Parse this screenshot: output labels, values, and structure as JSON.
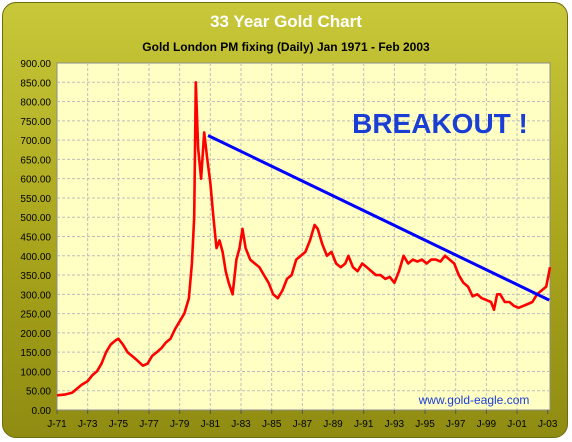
{
  "chart_data": {
    "type": "line",
    "title": "33 Year Gold Chart",
    "subtitle": "Gold London PM fixing (Daily) Jan 1971 - Feb 2003",
    "annotation": "BREAKOUT !",
    "watermark": "www.gold-eagle.com",
    "xlabel": "",
    "ylabel": "",
    "xlim": [
      1971.0,
      2003.15
    ],
    "ylim": [
      0,
      900
    ],
    "y_tick_step": 50,
    "y_tick_labels": [
      "0.00",
      "50.00",
      "100.00",
      "150.00",
      "200.00",
      "250.00",
      "300.00",
      "350.00",
      "400.00",
      "450.00",
      "500.00",
      "550.00",
      "600.00",
      "650.00",
      "700.00",
      "750.00",
      "800.00",
      "850.00",
      "900.00"
    ],
    "x_tick_labels": [
      "J-71",
      "J-73",
      "J-75",
      "J-77",
      "J-79",
      "J-81",
      "J-83",
      "J-85",
      "J-87",
      "J-89",
      "J-91",
      "J-93",
      "J-95",
      "J-97",
      "J-99",
      "J-01",
      "J-03"
    ],
    "x_tick_years": [
      1971,
      1973,
      1975,
      1977,
      1979,
      1981,
      1983,
      1985,
      1987,
      1989,
      1991,
      1993,
      1995,
      1997,
      1999,
      2001,
      2003
    ],
    "grid": true,
    "legend": "none",
    "series": [
      {
        "color": "#ff0000",
        "x": [
          1971.0,
          1971.5,
          1972.0,
          1972.3,
          1972.6,
          1973.0,
          1973.3,
          1973.6,
          1973.9,
          1974.2,
          1974.5,
          1974.8,
          1975.0,
          1975.3,
          1975.6,
          1975.9,
          1976.2,
          1976.6,
          1976.9,
          1977.2,
          1977.5,
          1977.8,
          1978.1,
          1978.4,
          1978.7,
          1979.0,
          1979.3,
          1979.6,
          1979.8,
          1979.95,
          1980.05,
          1980.2,
          1980.4,
          1980.6,
          1980.8,
          1981.0,
          1981.2,
          1981.4,
          1981.6,
          1981.8,
          1982.0,
          1982.2,
          1982.45,
          1982.7,
          1982.9,
          1983.1,
          1983.3,
          1983.6,
          1983.9,
          1984.2,
          1984.5,
          1984.8,
          1985.1,
          1985.4,
          1985.7,
          1986.0,
          1986.3,
          1986.6,
          1986.9,
          1987.2,
          1987.5,
          1987.8,
          1988.0,
          1988.3,
          1988.6,
          1988.9,
          1989.2,
          1989.5,
          1989.8,
          1990.0,
          1990.3,
          1990.6,
          1990.9,
          1991.2,
          1991.5,
          1991.8,
          1992.1,
          1992.4,
          1992.7,
          1993.0,
          1993.3,
          1993.6,
          1993.9,
          1994.2,
          1994.5,
          1994.8,
          1995.1,
          1995.4,
          1995.7,
          1996.0,
          1996.3,
          1996.6,
          1996.9,
          1997.2,
          1997.5,
          1997.8,
          1998.1,
          1998.4,
          1998.7,
          1999.0,
          1999.3,
          1999.5,
          1999.7,
          1999.9,
          2000.2,
          2000.5,
          2000.8,
          2001.1,
          2001.4,
          2001.7,
          2002.0,
          2002.3,
          2002.6,
          2002.9,
          2003.05,
          2003.15
        ],
        "y": [
          38,
          40,
          45,
          55,
          65,
          75,
          90,
          100,
          120,
          150,
          170,
          180,
          185,
          170,
          150,
          140,
          130,
          115,
          120,
          140,
          150,
          160,
          175,
          185,
          210,
          230,
          250,
          290,
          380,
          500,
          850,
          680,
          600,
          720,
          650,
          590,
          500,
          420,
          440,
          410,
          360,
          330,
          300,
          390,
          420,
          470,
          420,
          390,
          380,
          370,
          350,
          330,
          300,
          290,
          310,
          340,
          350,
          390,
          400,
          410,
          440,
          480,
          470,
          430,
          400,
          410,
          380,
          370,
          380,
          400,
          370,
          360,
          380,
          370,
          360,
          350,
          350,
          340,
          345,
          330,
          360,
          400,
          380,
          390,
          385,
          390,
          380,
          390,
          390,
          385,
          400,
          390,
          380,
          350,
          330,
          320,
          295,
          300,
          290,
          285,
          280,
          260,
          300,
          300,
          280,
          280,
          270,
          265,
          270,
          275,
          280,
          300,
          310,
          320,
          350,
          370
        ]
      }
    ],
    "trendline": {
      "color": "#0000ff",
      "x": [
        1980.85,
        2003.1
      ],
      "y": [
        712,
        285
      ]
    }
  }
}
